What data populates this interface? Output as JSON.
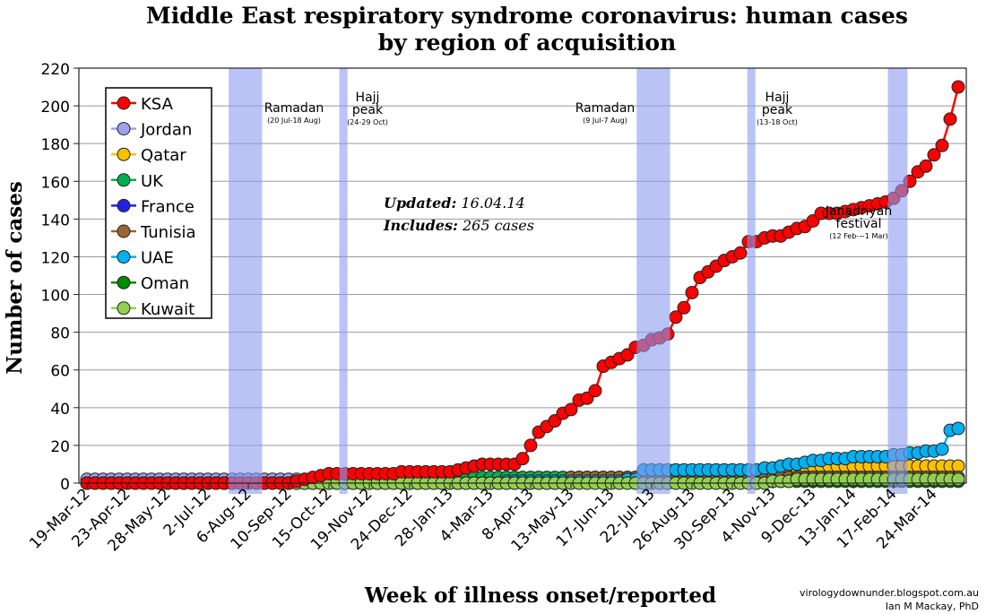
{
  "chart_data": {
    "type": "line",
    "title_line1": "Middle East respiratory syndrome coronavirus: human cases",
    "title_line2": "by region of acquisition",
    "xlabel": "Week of illness onset/reported",
    "ylabel": "Number of cases",
    "ylim": [
      0,
      220
    ],
    "yticks": [
      0,
      20,
      40,
      60,
      80,
      100,
      120,
      140,
      160,
      180,
      200,
      220
    ],
    "grid": "horizontal",
    "legend_placement": "top-left",
    "x_start": "2012-03-19",
    "x_step_days": 7,
    "xtick_labels": [
      "19-Mar-12",
      "23-Apr-12",
      "28-May-12",
      "2-Jul-12",
      "6-Aug-12",
      "10-Sep-12",
      "15-Oct-12",
      "19-Nov-12",
      "24-Dec-12",
      "28-Jan-13",
      "4-Mar-13",
      "8-Apr-13",
      "13-May-13",
      "17-Jun-13",
      "22-Jul-13",
      "26-Aug-13",
      "30-Sep-13",
      "4-Nov-13",
      "9-Dec-13",
      "13-Jan-14",
      "17-Feb-14",
      "24-Mar-14"
    ],
    "series": [
      {
        "name": "Jordan",
        "color": "#9fa0ee",
        "values": [
          2,
          2,
          2,
          2,
          2,
          2,
          2,
          2,
          2,
          2,
          2,
          2,
          2,
          2,
          2,
          2,
          2,
          2,
          2,
          2,
          2,
          2,
          2,
          2,
          2,
          2,
          2,
          2,
          2,
          2,
          2,
          2,
          2,
          2,
          2,
          2,
          2,
          2,
          2,
          2,
          2,
          2,
          2,
          2,
          2,
          2,
          2,
          2,
          2,
          2,
          2,
          2,
          2,
          2,
          2,
          2,
          2,
          2,
          2,
          2,
          2,
          2,
          2,
          2,
          2,
          2,
          2,
          2,
          2,
          2,
          2,
          2,
          2,
          2,
          2,
          2,
          2,
          2,
          2,
          2,
          2,
          2,
          2,
          2,
          2,
          2,
          2,
          2,
          2,
          2,
          2,
          2,
          2,
          2,
          2,
          2,
          2,
          2,
          2,
          2,
          2,
          2,
          2,
          2,
          2,
          2,
          2,
          2,
          2
        ]
      },
      {
        "name": "Qatar",
        "color": "#ffc000",
        "values": [
          0,
          0,
          0,
          0,
          0,
          0,
          0,
          0,
          0,
          0,
          0,
          0,
          0,
          0,
          0,
          0,
          0,
          0,
          0,
          0,
          0,
          0,
          0,
          0,
          0,
          0,
          1,
          1,
          1,
          1,
          1,
          2,
          2,
          2,
          2,
          2,
          2,
          2,
          2,
          2,
          2,
          2,
          2,
          2,
          2,
          2,
          2,
          2,
          2,
          2,
          2,
          2,
          2,
          2,
          2,
          2,
          2,
          2,
          2,
          2,
          2,
          2,
          2,
          2,
          2,
          2,
          2,
          2,
          2,
          2,
          2,
          2,
          2,
          2,
          2,
          2,
          2,
          2,
          2,
          2,
          2,
          3,
          5,
          6,
          7,
          7,
          8,
          8,
          8,
          9,
          9,
          9,
          9,
          9,
          9,
          9,
          9,
          9,
          9,
          9,
          9,
          9,
          9,
          9,
          9,
          9,
          9,
          9,
          9
        ]
      },
      {
        "name": "UK",
        "color": "#00b050",
        "values": [
          0,
          0,
          0,
          0,
          0,
          0,
          0,
          0,
          0,
          0,
          0,
          0,
          0,
          0,
          0,
          0,
          0,
          0,
          0,
          0,
          0,
          0,
          0,
          0,
          0,
          0,
          1,
          1,
          1,
          1,
          1,
          1,
          1,
          1,
          1,
          1,
          1,
          1,
          1,
          1,
          1,
          1,
          1,
          1,
          1,
          1,
          1,
          3,
          3,
          3,
          3,
          3,
          3,
          3,
          3,
          3,
          3,
          3,
          3,
          3,
          3,
          3,
          3,
          3,
          3,
          3,
          3,
          3,
          3,
          3,
          3,
          3,
          3,
          3,
          3,
          3,
          3,
          3,
          3,
          3,
          3,
          3,
          3,
          3,
          3,
          3,
          3,
          3,
          3,
          3,
          3,
          3,
          3,
          3,
          3,
          3,
          3,
          3,
          3,
          3,
          3,
          3,
          3,
          3,
          3,
          3,
          3,
          3,
          3
        ]
      },
      {
        "name": "France",
        "color": "#2222dd",
        "values": [
          0,
          0,
          0,
          0,
          0,
          0,
          0,
          0,
          0,
          0,
          0,
          0,
          0,
          0,
          0,
          0,
          0,
          0,
          0,
          0,
          0,
          0,
          0,
          0,
          0,
          0,
          0,
          0,
          0,
          0,
          0,
          0,
          0,
          0,
          0,
          0,
          0,
          0,
          0,
          0,
          0,
          0,
          0,
          0,
          0,
          0,
          0,
          0,
          0,
          0,
          0,
          0,
          0,
          0,
          0,
          0,
          0,
          0,
          0,
          0,
          2,
          2,
          2,
          2,
          2,
          2,
          2,
          2,
          2,
          2,
          2,
          2,
          2,
          2,
          2,
          2,
          2,
          2,
          2,
          2,
          2,
          2,
          2,
          2,
          2,
          2,
          2,
          2,
          2,
          2,
          2,
          2,
          2,
          2,
          2,
          2,
          2,
          2,
          2,
          2,
          2,
          2,
          2,
          2,
          2,
          2,
          2,
          2,
          2
        ]
      },
      {
        "name": "Tunisia",
        "color": "#9a6634",
        "values": [
          0,
          0,
          0,
          0,
          0,
          0,
          0,
          0,
          0,
          0,
          0,
          0,
          0,
          0,
          0,
          0,
          0,
          0,
          0,
          0,
          0,
          0,
          0,
          0,
          0,
          0,
          0,
          0,
          0,
          0,
          0,
          0,
          0,
          0,
          0,
          0,
          0,
          0,
          0,
          0,
          0,
          0,
          0,
          0,
          0,
          0,
          0,
          0,
          0,
          0,
          0,
          0,
          0,
          0,
          0,
          0,
          0,
          0,
          0,
          0,
          3,
          3,
          3,
          3,
          3,
          3,
          3,
          3,
          3,
          3,
          3,
          3,
          3,
          3,
          3,
          3,
          3,
          3,
          3,
          3,
          3,
          3,
          3,
          3,
          3,
          3,
          3,
          3,
          3,
          3,
          3,
          3,
          3,
          3,
          3,
          3,
          3,
          3,
          3,
          3,
          3,
          3,
          3,
          3,
          3,
          3,
          3,
          3,
          3
        ]
      },
      {
        "name": "UAE",
        "color": "#00b0f0",
        "values": [
          0,
          0,
          0,
          0,
          0,
          0,
          0,
          0,
          0,
          0,
          0,
          0,
          0,
          0,
          0,
          0,
          0,
          0,
          0,
          0,
          0,
          0,
          0,
          0,
          0,
          0,
          0,
          0,
          0,
          0,
          0,
          0,
          0,
          0,
          0,
          0,
          0,
          0,
          0,
          0,
          0,
          0,
          0,
          0,
          0,
          0,
          0,
          0,
          0,
          0,
          0,
          0,
          1,
          1,
          1,
          1,
          1,
          1,
          1,
          1,
          1,
          1,
          1,
          1,
          1,
          1,
          1,
          2,
          2,
          7,
          7,
          7,
          7,
          7,
          7,
          7,
          7,
          7,
          7,
          7,
          7,
          7,
          7,
          7,
          8,
          8,
          9,
          10,
          10,
          11,
          12,
          12,
          13,
          13,
          13,
          14,
          14,
          14,
          14,
          14,
          15,
          15,
          16,
          16,
          17,
          17,
          18,
          28,
          29
        ]
      },
      {
        "name": "Oman",
        "color": "#008a00",
        "values": [
          0,
          0,
          0,
          0,
          0,
          0,
          0,
          0,
          0,
          0,
          0,
          0,
          0,
          0,
          0,
          0,
          0,
          0,
          0,
          0,
          0,
          0,
          0,
          0,
          0,
          0,
          0,
          0,
          0,
          0,
          0,
          0,
          0,
          0,
          0,
          0,
          0,
          0,
          0,
          0,
          0,
          0,
          0,
          0,
          0,
          0,
          0,
          0,
          0,
          0,
          0,
          0,
          0,
          0,
          0,
          0,
          0,
          0,
          0,
          0,
          0,
          0,
          0,
          0,
          0,
          0,
          0,
          0,
          0,
          0,
          0,
          0,
          0,
          0,
          0,
          0,
          0,
          0,
          0,
          0,
          0,
          0,
          0,
          0,
          0,
          1,
          1,
          1,
          1,
          1,
          1,
          1,
          1,
          1,
          1,
          1,
          1,
          1,
          1,
          1,
          1,
          1,
          1,
          1,
          1,
          1,
          1,
          1,
          1
        ]
      },
      {
        "name": "Kuwait",
        "color": "#92d050",
        "values": [
          0,
          0,
          0,
          0,
          0,
          0,
          0,
          0,
          0,
          0,
          0,
          0,
          0,
          0,
          0,
          0,
          0,
          0,
          0,
          0,
          0,
          0,
          0,
          0,
          0,
          0,
          0,
          0,
          0,
          0,
          0,
          0,
          0,
          0,
          0,
          0,
          0,
          0,
          0,
          0,
          0,
          0,
          0,
          0,
          0,
          0,
          0,
          0,
          0,
          0,
          0,
          0,
          0,
          0,
          0,
          0,
          0,
          0,
          0,
          0,
          0,
          0,
          0,
          0,
          0,
          0,
          0,
          0,
          0,
          0,
          0,
          0,
          0,
          0,
          0,
          0,
          0,
          0,
          0,
          0,
          0,
          0,
          0,
          0,
          0,
          1,
          1,
          1,
          2,
          2,
          2,
          2,
          2,
          2,
          2,
          2,
          2,
          2,
          2,
          2,
          2,
          2,
          2,
          2,
          2,
          2,
          2,
          2,
          2
        ]
      },
      {
        "name": "KSA",
        "color": "#ff0000",
        "values": [
          0,
          0,
          0,
          0,
          0,
          0,
          0,
          0,
          0,
          0,
          0,
          0,
          0,
          0,
          0,
          0,
          0,
          0,
          0,
          0,
          0,
          0,
          0,
          0,
          0,
          0,
          1,
          2,
          3,
          4,
          5,
          5,
          5,
          5,
          5,
          5,
          5,
          5,
          5,
          6,
          6,
          6,
          6,
          6,
          6,
          6,
          7,
          8,
          9,
          10,
          10,
          10,
          10,
          10,
          13,
          20,
          27,
          30,
          33,
          37,
          39,
          44,
          45,
          49,
          62,
          64,
          66,
          68,
          72,
          73,
          76,
          77,
          79,
          88,
          93,
          101,
          109,
          112,
          115,
          118,
          120,
          122,
          128,
          128,
          130,
          131,
          131,
          133,
          135,
          136,
          139,
          143,
          143,
          143,
          144,
          145,
          146,
          147,
          148,
          149,
          151,
          155,
          160,
          165,
          168,
          174,
          179,
          193,
          210
        ]
      }
    ],
    "legend_order": [
      "KSA",
      "Jordan",
      "Qatar",
      "UK",
      "France",
      "Tunisia",
      "UAE",
      "Oman",
      "Kuwait"
    ],
    "bands": [
      {
        "start": "2012-07-20",
        "end": "2012-08-18",
        "label": "Ramadan",
        "sublabel": "(20 Jul-18 Aug)"
      },
      {
        "start": "2012-10-24",
        "end": "2012-10-29",
        "label": "Hajj peak",
        "sublabel": "(24-29 Oct)"
      },
      {
        "start": "2013-07-09",
        "end": "2013-08-07",
        "label": "Ramadan",
        "sublabel": "(9 Jul-7 Aug)"
      },
      {
        "start": "2013-10-13",
        "end": "2013-10-18",
        "label": "Hajj peak",
        "sublabel": "(13-18 Oct)"
      },
      {
        "start": "2014-02-12",
        "end": "2014-03-01",
        "label": "Janadriyah festival",
        "sublabel": "(12 Feb-~1 Mar)"
      }
    ],
    "band_color": "#8b9bf0",
    "annotation": {
      "updated_label": "Updated:",
      "updated_value": "16.04.14",
      "includes_label": "Includes:",
      "includes_value": "265 cases"
    },
    "credits": [
      "virologydownunder.blogspot.com.au",
      "Ian M Mackay, PhD"
    ]
  }
}
